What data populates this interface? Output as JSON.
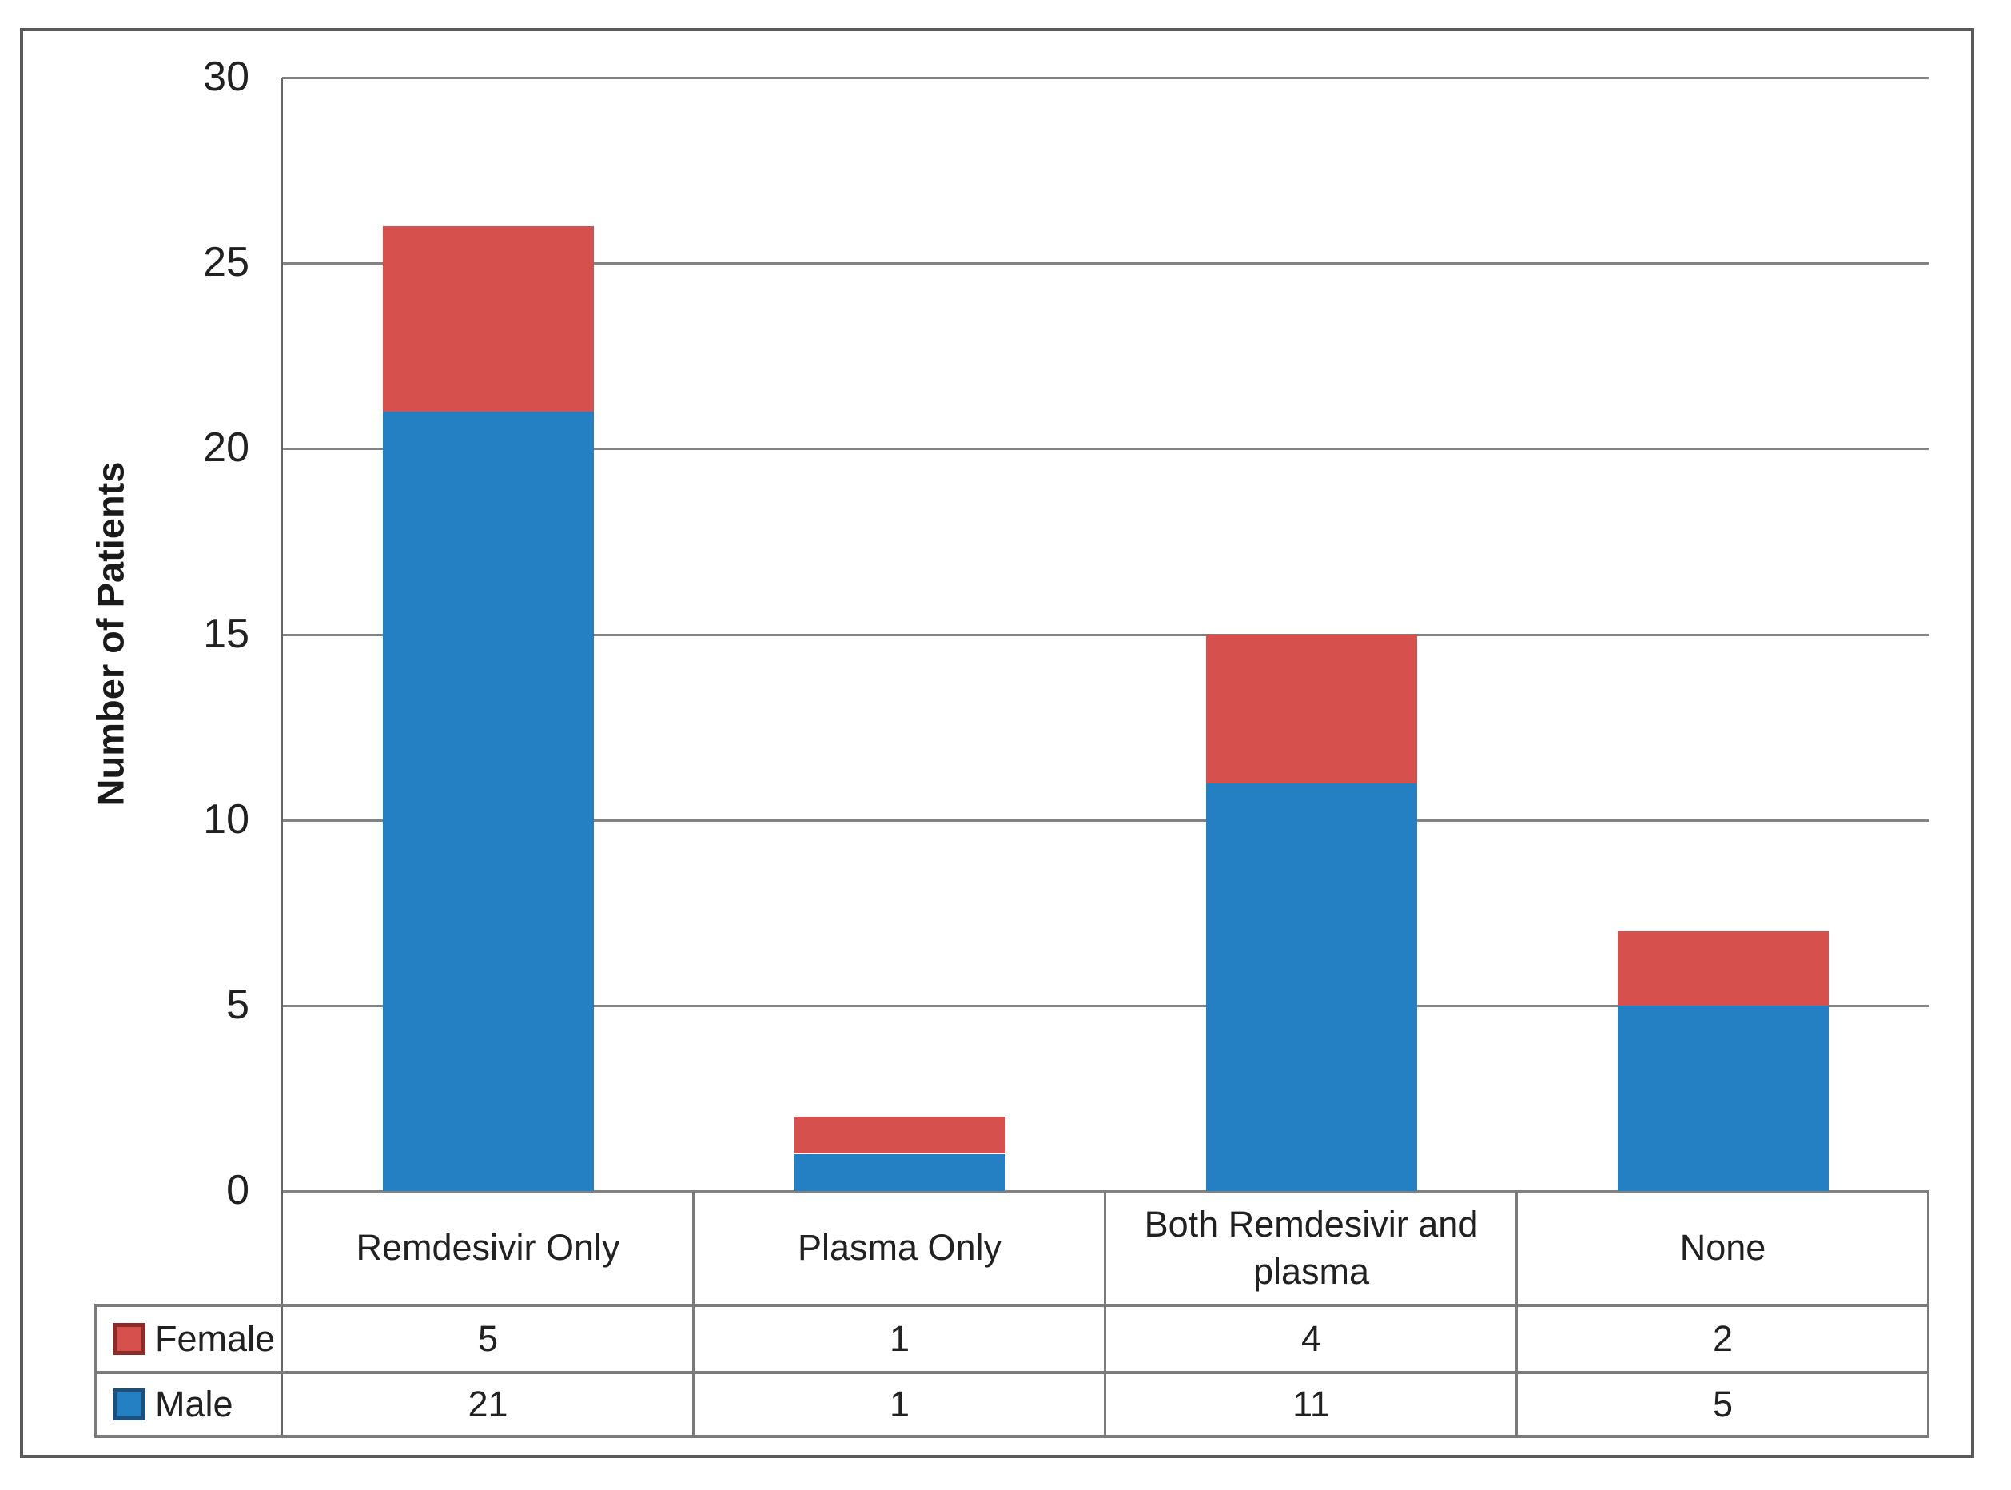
{
  "chart_data": {
    "type": "bar",
    "stacked": true,
    "title": "",
    "xlabel": "",
    "ylabel": "Number of Patients",
    "ylim": [
      0,
      30
    ],
    "yticks": [
      0,
      5,
      10,
      15,
      20,
      25,
      30
    ],
    "grid": true,
    "legend_position": "table-left",
    "categories": [
      "Remdesivir Only",
      "Plasma Only",
      "Both Remdesivir and plasma",
      "None"
    ],
    "series": [
      {
        "name": "Male",
        "color": "#2480C2",
        "swatch_border_color": "#1D4F7C",
        "values": [
          21,
          1,
          11,
          5
        ]
      },
      {
        "name": "Female",
        "color": "#D6504D",
        "swatch_border_color": "#8E2B29",
        "values": [
          5,
          1,
          4,
          2
        ]
      }
    ],
    "stack_order_bottom_to_top": [
      "Male",
      "Female"
    ],
    "data_table_row_order": [
      "Female",
      "Male"
    ],
    "colors": {
      "gridline": "#828282",
      "axis_line": "#666666",
      "table_border": "#7a7a7a",
      "figure_border": "#595959",
      "text": "#212121"
    }
  }
}
